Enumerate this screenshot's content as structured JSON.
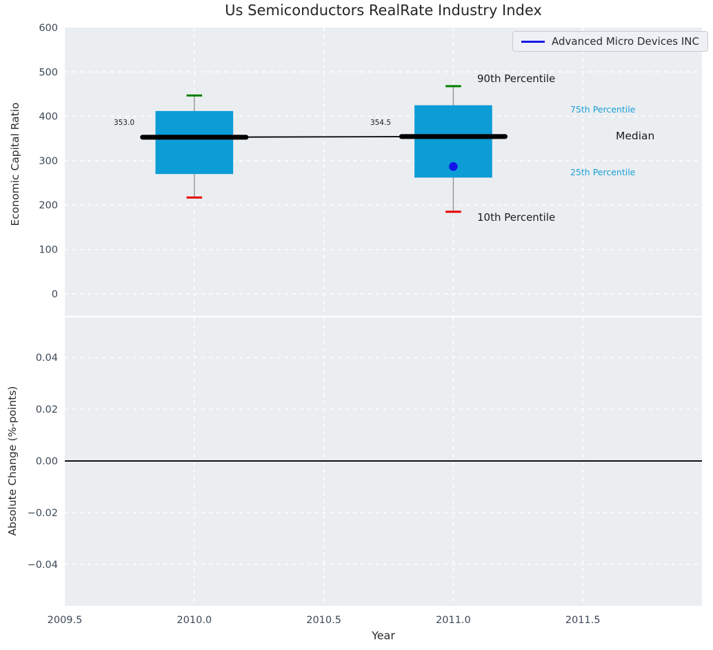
{
  "title": "Us Semiconductors RealRate Industry Index",
  "legend": {
    "label": "Advanced Micro Devices INC",
    "line_color": "#1414e8"
  },
  "colors": {
    "axes_background": "#ebeef0",
    "grid": "#ffffff",
    "box_fill": "#0c9dd6",
    "p90_cap": "#008000",
    "p10_cap": "#e60000",
    "whisker": "#8a8a8a",
    "median_line": "#000000",
    "company_marker": "#1414e8",
    "tick_label": "#3b4757",
    "annotation_cyan": "#199dd9",
    "annotation_dark": "#1a1a1a"
  },
  "chart_data": [
    {
      "type": "box",
      "title": "Us Semiconductors RealRate Industry Index",
      "ylabel": "Economic Capital Ratio",
      "ylim": [
        -50,
        600
      ],
      "yticks": [
        {
          "v": 0,
          "label": "0"
        },
        {
          "v": 100,
          "label": "100"
        },
        {
          "v": 200,
          "label": "200"
        },
        {
          "v": 300,
          "label": "300"
        },
        {
          "v": 400,
          "label": "400"
        },
        {
          "v": 500,
          "label": "500"
        },
        {
          "v": 600,
          "label": "600"
        }
      ],
      "xlim": [
        2009.5,
        2011.96
      ],
      "grid_x": [
        2010.0,
        2010.5,
        2011.0,
        2011.5
      ],
      "box_width_years": 0.3,
      "median_width_years": 0.4,
      "cap_width_years": 0.06,
      "boxes": [
        {
          "x": 2010,
          "p10": 217,
          "p25": 270,
          "median": 353.0,
          "p75": 412,
          "p90": 447,
          "median_label": "353.0"
        },
        {
          "x": 2011,
          "p10": 185,
          "p25": 262,
          "median": 354.5,
          "p75": 425,
          "p90": 468,
          "median_label": "354.5",
          "company_value": 287
        }
      ],
      "median_trend": {
        "x": [
          2010,
          2011
        ],
        "y": [
          353.0,
          354.5
        ]
      },
      "legend_position": "upper right",
      "grid": "on",
      "annotations": [
        {
          "text": "90th Percentile",
          "style": "dark"
        },
        {
          "text": "75th Percentile",
          "style": "cyan"
        },
        {
          "text": "Median",
          "style": "dark"
        },
        {
          "text": "25th Percentile",
          "style": "cyan"
        },
        {
          "text": "10th Percentile",
          "style": "dark"
        }
      ]
    },
    {
      "type": "line",
      "ylabel": "Absolute Change (%-points)",
      "xlabel": "Year",
      "ylim": [
        -0.056,
        0.0555
      ],
      "yticks": [
        {
          "v": 0.04,
          "label": "0.04"
        },
        {
          "v": 0.02,
          "label": "0.02"
        },
        {
          "v": 0,
          "label": "0.00"
        },
        {
          "v": -0.02,
          "label": "−0.02"
        },
        {
          "v": -0.04,
          "label": "−0.04"
        }
      ],
      "xticks": [
        {
          "v": 2009.5,
          "label": "2009.5"
        },
        {
          "v": 2010.0,
          "label": "2010.0"
        },
        {
          "v": 2010.5,
          "label": "2010.5"
        },
        {
          "v": 2011.0,
          "label": "2011.0"
        },
        {
          "v": 2011.5,
          "label": "2011.5"
        }
      ],
      "grid_x": [
        2010.0,
        2010.5,
        2011.0,
        2011.5
      ],
      "zero_line": 0.0,
      "grid": "on"
    }
  ]
}
